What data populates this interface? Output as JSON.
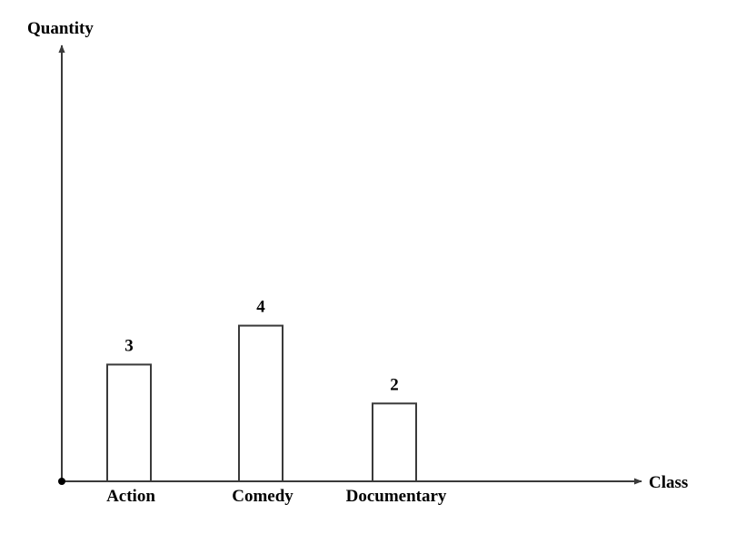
{
  "chart_data": {
    "type": "bar",
    "categories": [
      "Action",
      "Comedy",
      "Documentary"
    ],
    "values": [
      3,
      4,
      2
    ],
    "title": "",
    "xlabel": "Class",
    "ylabel": "Quantity",
    "ylim": [
      0,
      11.2
    ],
    "grid": false,
    "legend": "none",
    "data_labels": [
      "3",
      "4",
      "2"
    ],
    "colors": {
      "axis": "#3a3a3a",
      "bar_fill": "#ffffff",
      "bar_stroke": "#3a3a3a",
      "text": "#000000"
    }
  }
}
